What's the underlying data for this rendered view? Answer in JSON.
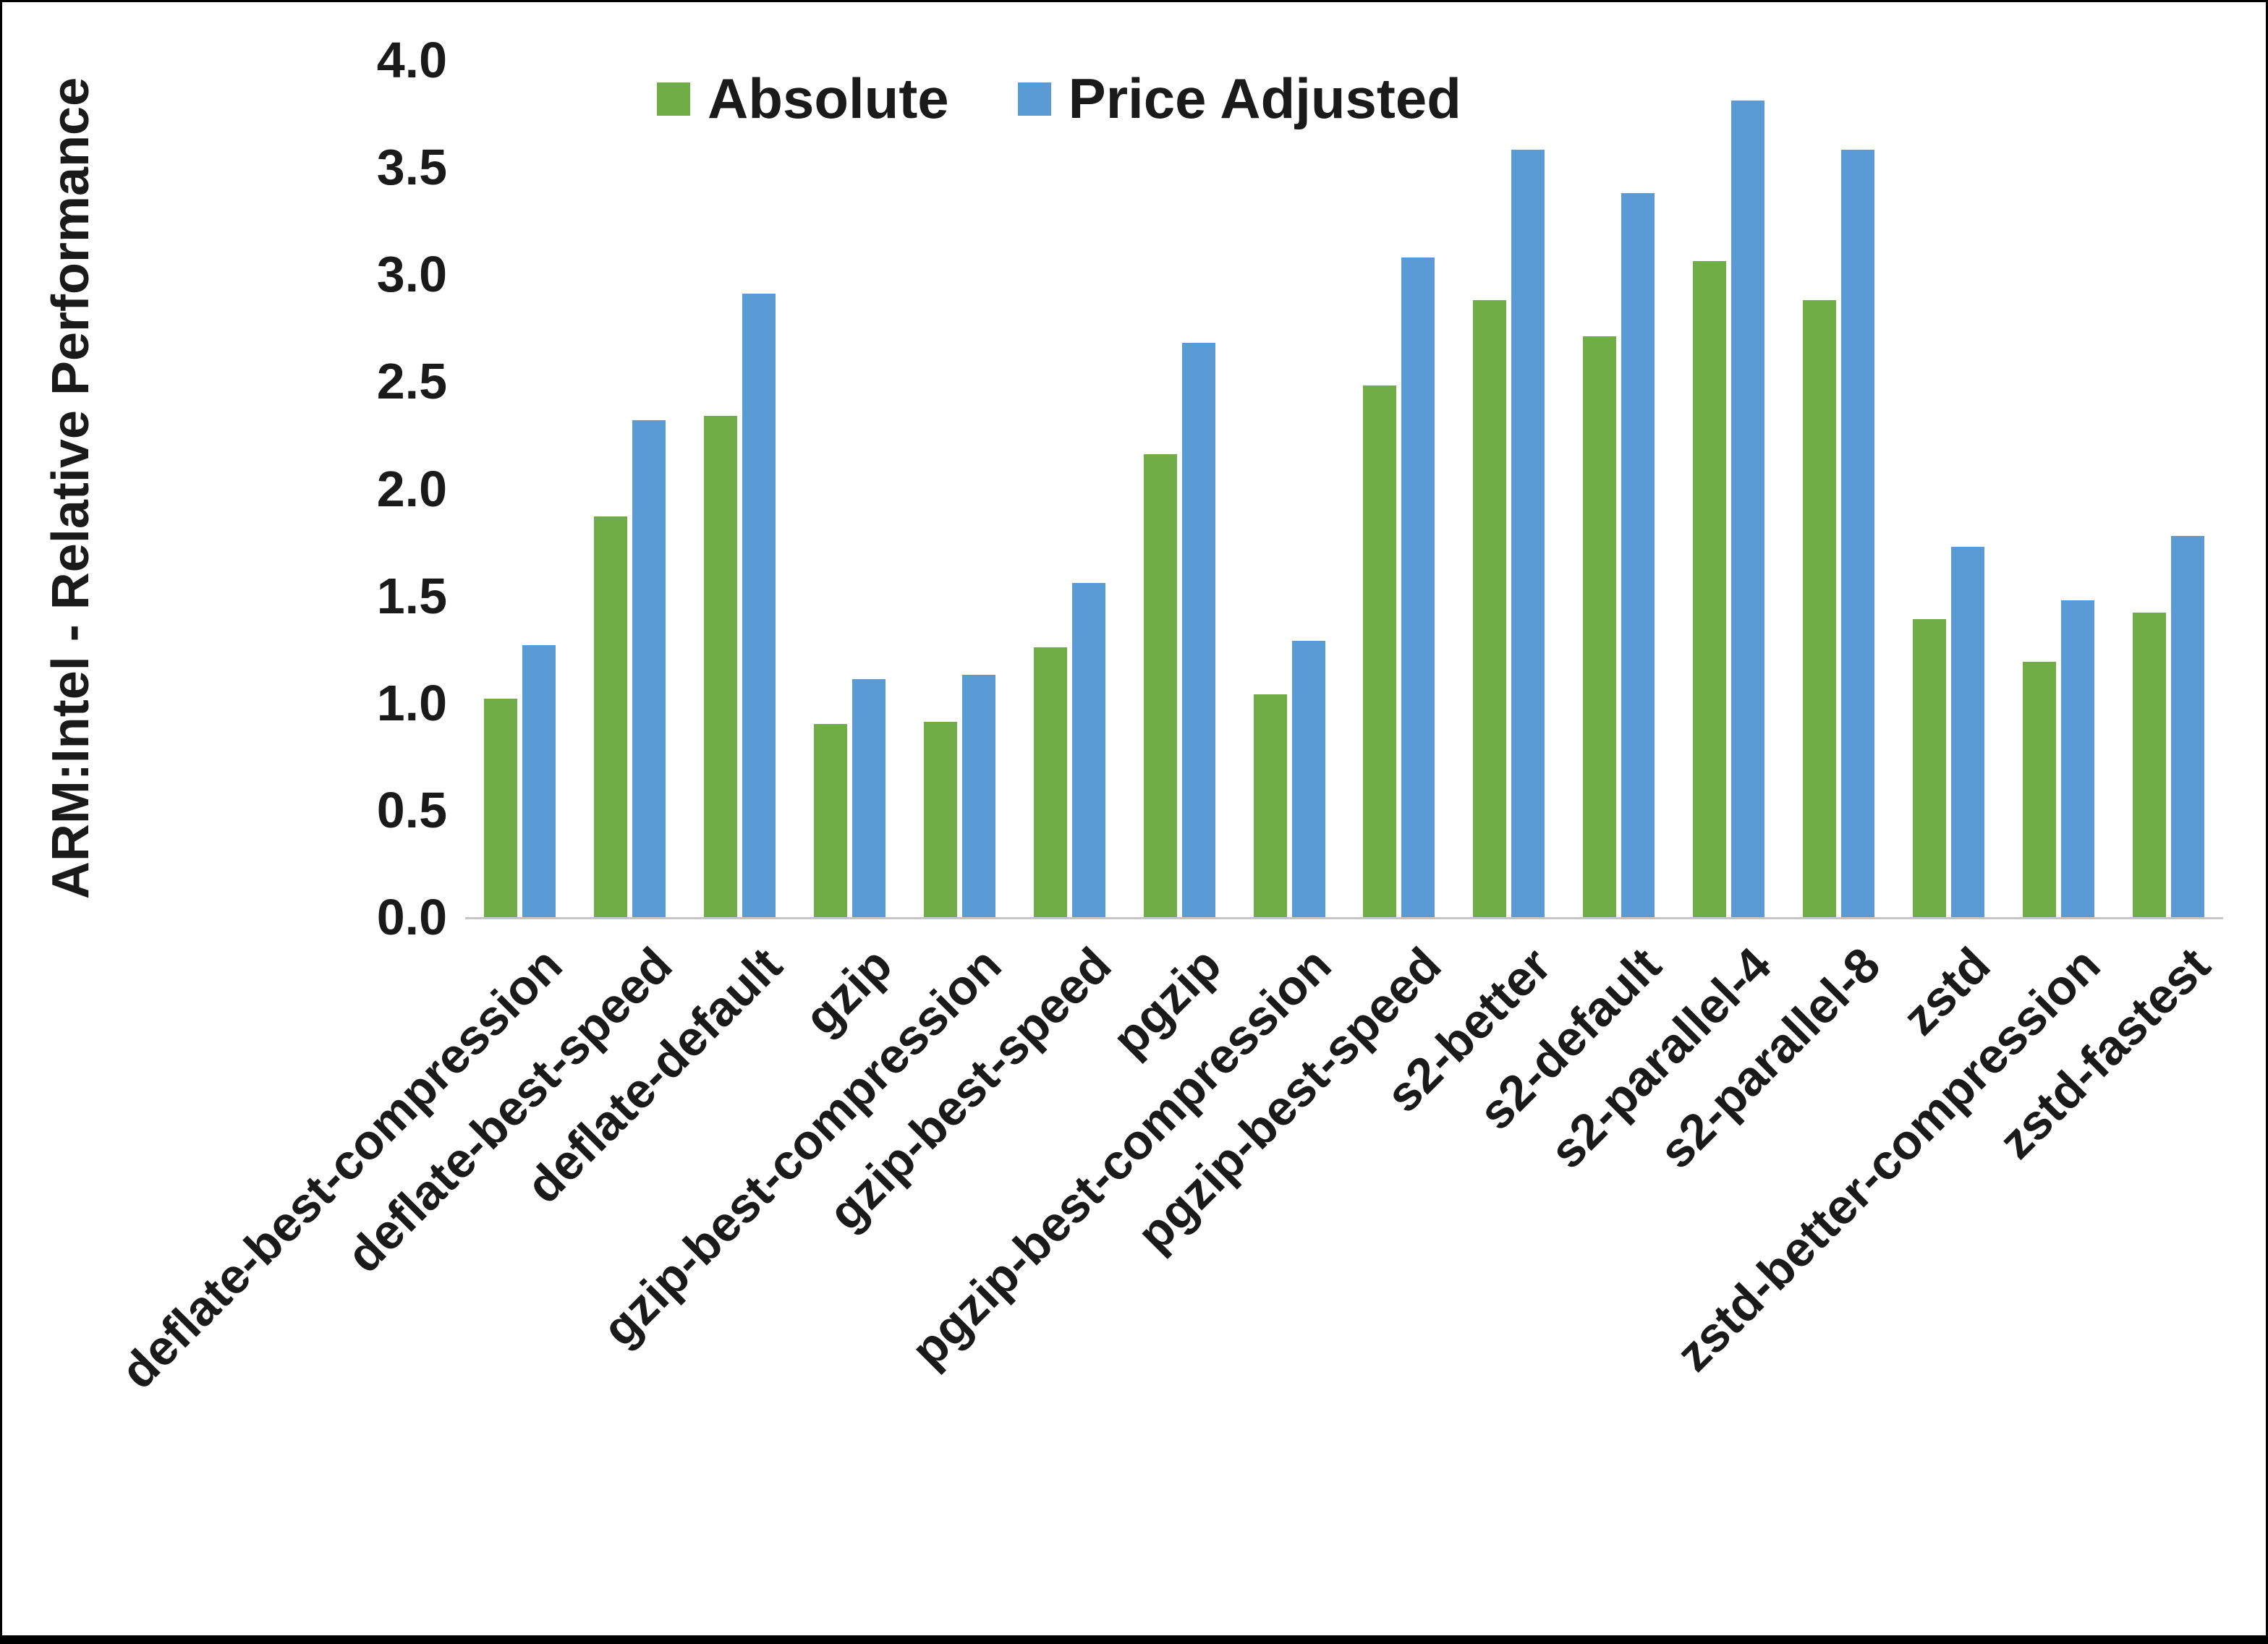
{
  "chart_data": {
    "type": "bar",
    "title": "",
    "xlabel": "",
    "ylabel": "ARM:Intel - Relative Performance",
    "ylim": [
      0.0,
      4.0
    ],
    "ytick_step": 0.5,
    "grid": false,
    "legend_position": "top",
    "categories": [
      "deflate-best-compression",
      "deflate-best-speed",
      "deflate-default",
      "gzip",
      "gzip-best-compression",
      "gzip-best-speed",
      "pgzip",
      "pgzip-best-compression",
      "pgzip-best-speed",
      "s2-better",
      "s2-default",
      "s2-parallel-4",
      "s2-parallel-8",
      "zstd",
      "zstd-better-compression",
      "zstd-fastest"
    ],
    "series": [
      {
        "name": "Absolute",
        "color": "#70AD47",
        "values": [
          1.02,
          1.87,
          2.34,
          0.9,
          0.91,
          1.26,
          2.16,
          1.04,
          2.48,
          2.88,
          2.71,
          3.06,
          2.88,
          1.39,
          1.19,
          1.42
        ]
      },
      {
        "name": "Price Adjusted",
        "color": "#5B9BD5",
        "values": [
          1.27,
          2.32,
          2.91,
          1.11,
          1.13,
          1.56,
          2.68,
          1.29,
          3.08,
          3.58,
          3.38,
          3.81,
          3.58,
          1.73,
          1.48,
          1.78
        ]
      }
    ],
    "colors": {
      "axis_line": "#c6c6c6",
      "text": "#1a1a1a",
      "background": "#ffffff",
      "frame_border": "#000000"
    }
  }
}
